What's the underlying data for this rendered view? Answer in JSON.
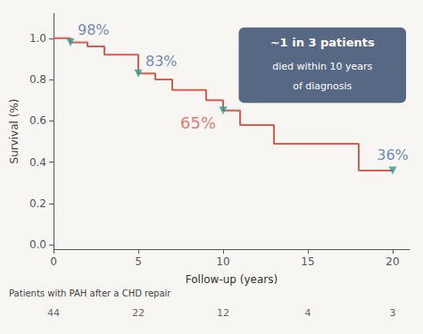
{
  "chart_data": {
    "type": "line",
    "xlabel": "Follow-up (years)",
    "ylabel": "Survival (%)",
    "xlim": [
      0,
      21
    ],
    "ylim": [
      -0.02,
      1.12
    ],
    "xticks": [
      0,
      5,
      10,
      15,
      20
    ],
    "yticks": [
      {
        "value": 0.0,
        "label": "0.0"
      },
      0.2,
      0.4,
      0.6,
      0.8,
      {
        "value": 1.0,
        "label": "1.0"
      }
    ],
    "background": "#f8f6f3",
    "series": [
      {
        "type": "line",
        "color": "#e05a4e",
        "x": [
          0,
          1,
          1,
          2,
          2,
          3,
          3,
          5,
          5,
          6,
          6,
          7,
          7,
          9,
          9,
          10,
          10,
          11,
          11,
          13,
          13,
          18,
          18,
          20
        ],
        "values": [
          1.0,
          1.0,
          0.98,
          0.98,
          0.96,
          0.96,
          0.92,
          0.92,
          0.83,
          0.83,
          0.8,
          0.8,
          0.75,
          0.75,
          0.7,
          0.7,
          0.65,
          0.65,
          0.58,
          0.58,
          0.49,
          0.49,
          0.36,
          0.36
        ]
      },
      {
        "type": "scatter",
        "marker": "triangle-down",
        "color": "#2a9d8f",
        "x": [
          1.0,
          5.0,
          10.0,
          20.0
        ],
        "values": [
          0.98,
          0.83,
          0.65,
          0.36
        ]
      }
    ],
    "annotations": [
      {
        "x": 1.0,
        "y": 0.98,
        "text": "98%",
        "color": "#4a6fa5"
      },
      {
        "x": 5.0,
        "y": 0.83,
        "text": "83%",
        "color": "#4a6fa5"
      },
      {
        "x": 10.0,
        "y": 0.65,
        "text": "65%",
        "color": "#e05a4e"
      },
      {
        "x": 20.0,
        "y": 0.36,
        "text": "36%",
        "color": "#4a6fa5"
      }
    ],
    "note": {
      "lines": [
        "~1 in 3 patients",
        "died within 10 years",
        "of diagnosis"
      ],
      "color": "#4d607d",
      "text_color": "#ffffff"
    },
    "table": {
      "header": "Patients with PAH after a CHD repair",
      "x": [
        0,
        5,
        10,
        15,
        20
      ],
      "values": [
        44,
        22,
        12,
        4,
        3
      ]
    }
  }
}
